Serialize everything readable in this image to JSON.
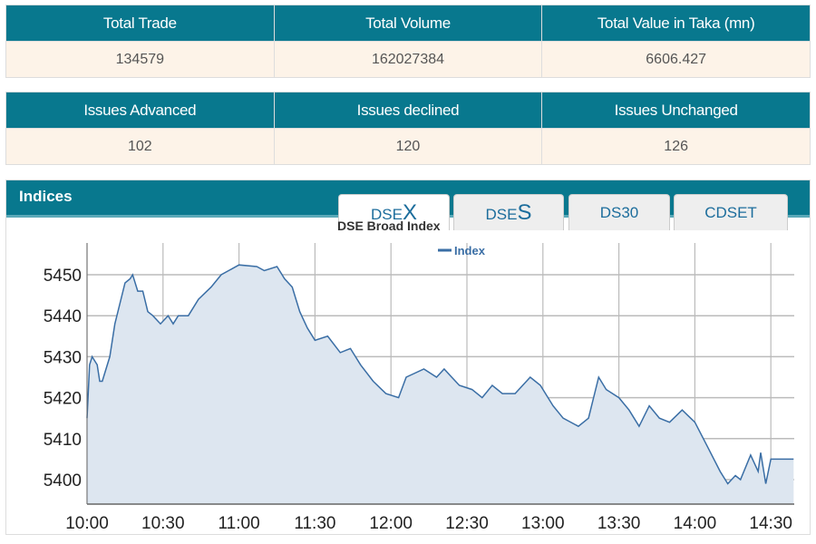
{
  "summary1": {
    "headers": [
      "Total Trade",
      "Total Volume",
      "Total Value in Taka (mn)"
    ],
    "values": [
      "134579",
      "162027384",
      "6606.427"
    ]
  },
  "summary2": {
    "headers": [
      "Issues Advanced",
      "Issues declined",
      "Issues Unchanged"
    ],
    "values": [
      "102",
      "120",
      "126"
    ]
  },
  "indices": {
    "title": "Indices",
    "tabs": [
      {
        "prefix": "DSE",
        "suffix": "X",
        "active": true
      },
      {
        "prefix": "DSE",
        "suffix": "S",
        "active": false
      },
      {
        "prefix": "DS30",
        "suffix": "",
        "active": false
      },
      {
        "prefix": "CDSET",
        "suffix": "",
        "active": false
      }
    ]
  },
  "colors": {
    "header": "#08788e",
    "value_row": "#fdf3e8",
    "line": "#3a6ea5",
    "fill": "#dde6f0"
  },
  "chart_data": {
    "type": "area",
    "title": "DSE Broad Index",
    "legend": {
      "entries": [
        "Index"
      ],
      "placement": "top-center"
    },
    "grid": true,
    "xlabel": "",
    "ylabel": "",
    "xticks": [
      "10:00",
      "10:30",
      "11:00",
      "11:30",
      "12:00",
      "12:30",
      "13:00",
      "13:30",
      "14:00",
      "14:30"
    ],
    "yticks": [
      5400,
      5410,
      5420,
      5430,
      5440,
      5450
    ],
    "xlim": [
      "10:00",
      "14:39"
    ],
    "ylim": [
      5394,
      5460
    ],
    "series": [
      {
        "name": "Index",
        "points": [
          [
            "10:00",
            5415
          ],
          [
            "10:01",
            5428
          ],
          [
            "10:02",
            5430
          ],
          [
            "10:04",
            5428
          ],
          [
            "10:05",
            5424
          ],
          [
            "10:06",
            5424
          ],
          [
            "10:09",
            5430
          ],
          [
            "10:11",
            5438
          ],
          [
            "10:15",
            5448
          ],
          [
            "10:17",
            5449
          ],
          [
            "10:18",
            5450
          ],
          [
            "10:20",
            5446
          ],
          [
            "10:22",
            5446
          ],
          [
            "10:24",
            5441
          ],
          [
            "10:26",
            5440
          ],
          [
            "10:29",
            5438
          ],
          [
            "10:32",
            5440
          ],
          [
            "10:34",
            5438
          ],
          [
            "10:36",
            5440
          ],
          [
            "10:40",
            5440
          ],
          [
            "10:44",
            5444
          ],
          [
            "10:49",
            5447
          ],
          [
            "10:53",
            5450
          ],
          [
            "11:00",
            5452.4
          ],
          [
            "11:07",
            5452
          ],
          [
            "11:10",
            5451
          ],
          [
            "11:15",
            5452
          ],
          [
            "11:18",
            5449
          ],
          [
            "11:21",
            5447
          ],
          [
            "11:24",
            5441
          ],
          [
            "11:27",
            5437
          ],
          [
            "11:30",
            5434
          ],
          [
            "11:35",
            5435
          ],
          [
            "11:40",
            5431
          ],
          [
            "11:44",
            5432
          ],
          [
            "11:48",
            5428
          ],
          [
            "11:53",
            5424
          ],
          [
            "11:58",
            5421
          ],
          [
            "12:03",
            5420
          ],
          [
            "12:06",
            5425
          ],
          [
            "12:13",
            5427
          ],
          [
            "12:18",
            5425
          ],
          [
            "12:21",
            5427
          ],
          [
            "12:24",
            5425
          ],
          [
            "12:27",
            5423
          ],
          [
            "12:32",
            5422
          ],
          [
            "12:36",
            5420
          ],
          [
            "12:40",
            5423
          ],
          [
            "12:44",
            5421
          ],
          [
            "12:49",
            5421
          ],
          [
            "12:55",
            5425
          ],
          [
            "12:59",
            5423
          ],
          [
            "13:04",
            5418
          ],
          [
            "13:08",
            5415
          ],
          [
            "13:14",
            5413
          ],
          [
            "13:18",
            5415
          ],
          [
            "13:22",
            5425
          ],
          [
            "13:25",
            5422
          ],
          [
            "13:30",
            5420
          ],
          [
            "13:34",
            5417
          ],
          [
            "13:38",
            5413
          ],
          [
            "13:42",
            5418
          ],
          [
            "13:46",
            5415
          ],
          [
            "13:50",
            5414
          ],
          [
            "13:55",
            5417
          ],
          [
            "14:00",
            5414
          ],
          [
            "14:05",
            5408
          ],
          [
            "14:10",
            5402
          ],
          [
            "14:13",
            5399
          ],
          [
            "14:16",
            5401
          ],
          [
            "14:18",
            5400
          ],
          [
            "14:22",
            5406
          ],
          [
            "14:25",
            5402
          ],
          [
            "14:26",
            5406.6
          ],
          [
            "14:28",
            5399
          ],
          [
            "14:30",
            5405
          ],
          [
            "14:39",
            5405
          ]
        ]
      }
    ]
  }
}
